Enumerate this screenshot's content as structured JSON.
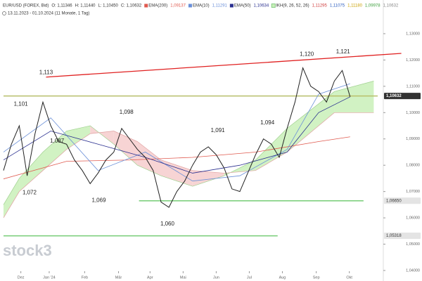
{
  "header": {
    "title": "EUR/USD (FOREX, Bid)",
    "ohlc": [
      "O: 1,11346",
      "H: 1,11440",
      "L: 1,10450",
      "C: 1,10632"
    ],
    "range": "13.11.2023 - 01.10.2024 (11 Monate, 1 Tag)",
    "watermark": "stock3"
  },
  "chart_data": {
    "type": "line",
    "price": {
      "name": "EUR/USD (FOREX, Bid)",
      "color": "#222222",
      "values": [
        1.078,
        1.088,
        1.095,
        1.076,
        1.092,
        1.104,
        1.095,
        1.089,
        1.088,
        1.082,
        1.078,
        1.073,
        1.077,
        1.082,
        1.085,
        1.094,
        1.09,
        1.086,
        1.083,
        1.078,
        1.066,
        1.064,
        1.07,
        1.074,
        1.08,
        1.085,
        1.087,
        1.084,
        1.079,
        1.071,
        1.07,
        1.077,
        1.084,
        1.09,
        1.088,
        1.083,
        1.094,
        1.104,
        1.117,
        1.11,
        1.108,
        1.104,
        1.112,
        1.116,
        1.106
      ]
    },
    "series": [
      {
        "name": "EMA(200)",
        "legend_value": "1,09137",
        "color": "#e05a4f",
        "x": [
          0,
          8,
          16,
          24,
          32,
          40,
          44
        ],
        "values": [
          1.0748,
          1.0815,
          1.082,
          1.083,
          1.085,
          1.089,
          1.0908
        ]
      },
      {
        "name": "EMA(10)",
        "legend_value": "1,11291",
        "color": "#6a8fd8",
        "x": [
          0,
          6,
          12,
          18,
          24,
          30,
          36,
          40,
          44
        ],
        "values": [
          1.085,
          1.098,
          1.078,
          1.085,
          1.074,
          1.076,
          1.086,
          1.107,
          1.111
        ]
      },
      {
        "name": "EMA(50)",
        "legend_value": "1,10634",
        "color": "#2a2f8f",
        "x": [
          0,
          6,
          12,
          18,
          24,
          30,
          36,
          40,
          44
        ],
        "values": [
          1.082,
          1.093,
          1.088,
          1.083,
          1.077,
          1.08,
          1.085,
          1.1,
          1.106
        ]
      }
    ],
    "cloud": {
      "name": "IKH(9, 26, 52, 26)",
      "legend_values": [
        "1,11295",
        "1,11075",
        "1,11180",
        "1,09978",
        "1,10632"
      ],
      "legend_colors": [
        "#d04040",
        "#3060c0",
        "#c8a000",
        "#40a040",
        "#888888"
      ],
      "up_color": "#c9f0b8",
      "down_color": "#f6cccc",
      "x": [
        0,
        2,
        5,
        8,
        11,
        14,
        17,
        20,
        24,
        28,
        32,
        36,
        42,
        47
      ],
      "span_a": [
        1.065,
        1.075,
        1.085,
        1.093,
        1.095,
        1.088,
        1.08,
        1.076,
        1.072,
        1.076,
        1.082,
        1.094,
        1.108,
        1.112
      ],
      "span_b": [
        1.06,
        1.07,
        1.078,
        1.086,
        1.092,
        1.093,
        1.089,
        1.082,
        1.078,
        1.077,
        1.078,
        1.085,
        1.1,
        1.1
      ]
    },
    "hlines": [
      {
        "value": 1.10632,
        "label": "1,10632",
        "from": 0,
        "to": 47.5,
        "color": "#b8bf6a"
      },
      {
        "value": 1.0665,
        "label": "1,06650",
        "from": 17.2,
        "to": 45.7,
        "color": "#7fd07f"
      },
      {
        "value": 1.05318,
        "label": "1,05318",
        "from": 0,
        "to": 34.8,
        "color": "#7fd07f"
      }
    ],
    "trendline": {
      "color": "#e02020",
      "x": [
        5.4,
        50.5
      ],
      "values": [
        1.1135,
        1.1225
      ]
    },
    "annotations": [
      {
        "label": "1,113",
        "value": 1.113,
        "x": 5.4
      },
      {
        "label": "1,101",
        "value": 1.101,
        "x": 2.2
      },
      {
        "label": "1,072",
        "value": 1.072,
        "x": 3.3
      },
      {
        "label": "1,087",
        "value": 1.087,
        "x": 6.8
      },
      {
        "label": "1,069",
        "value": 1.069,
        "x": 12.1
      },
      {
        "label": "1,098",
        "value": 1.098,
        "x": 15.6
      },
      {
        "label": "1,060",
        "value": 1.06,
        "x": 20.8
      },
      {
        "label": "1,091",
        "value": 1.091,
        "x": 27.2
      },
      {
        "label": "1,094",
        "value": 1.094,
        "x": 33.5
      },
      {
        "label": "1,120",
        "value": 1.12,
        "x": 38.5
      },
      {
        "label": "1,121",
        "value": 1.121,
        "x": 43.1
      }
    ],
    "xlim": [
      0,
      47.5
    ],
    "ylim": [
      1.036,
      1.1428
    ],
    "xticks": [
      {
        "value": 2.2,
        "label": "Dez"
      },
      {
        "value": 5.8,
        "label": "Jan '24"
      },
      {
        "value": 10.3,
        "label": "Feb"
      },
      {
        "value": 14.6,
        "label": "Mär"
      },
      {
        "value": 18.6,
        "label": "Apr"
      },
      {
        "value": 22.8,
        "label": "Mai"
      },
      {
        "value": 27,
        "label": "Jun"
      },
      {
        "value": 31.2,
        "label": "Jul"
      },
      {
        "value": 35.4,
        "label": "Aug"
      },
      {
        "value": 39.7,
        "label": "Sep"
      },
      {
        "value": 43.9,
        "label": "Okt"
      }
    ],
    "yticks": [
      {
        "value": 1.04,
        "label": "1,04000"
      },
      {
        "value": 1.05,
        "label": "1,05000"
      },
      {
        "value": 1.06,
        "label": "1,06000"
      },
      {
        "value": 1.07,
        "label": "1,07000"
      },
      {
        "value": 1.08,
        "label": "1,08000"
      },
      {
        "value": 1.09,
        "label": "1,09000"
      },
      {
        "value": 1.1,
        "label": "1,10000"
      },
      {
        "value": 1.11,
        "label": "1,11000"
      },
      {
        "value": 1.12,
        "label": "1,12000"
      },
      {
        "value": 1.13,
        "label": "1,13000"
      }
    ],
    "grid": false
  }
}
